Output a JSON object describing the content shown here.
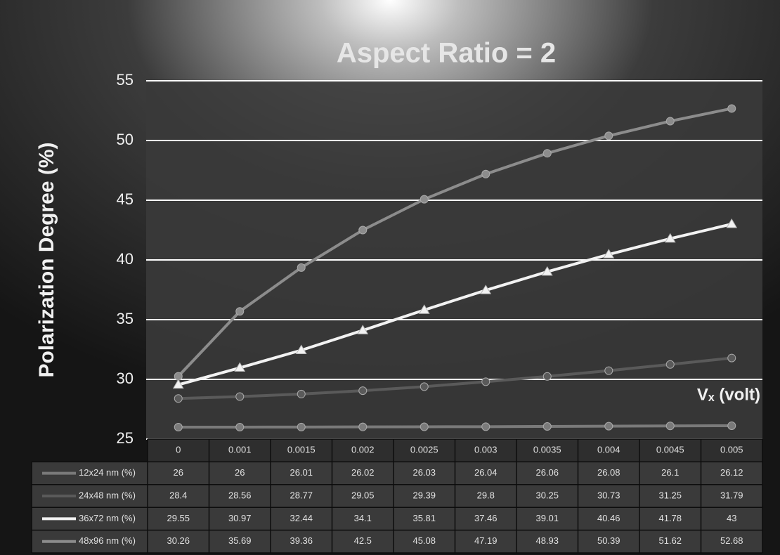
{
  "chart_data": {
    "type": "line",
    "title": "Aspect Ratio = 2",
    "y_label": "Polarization Degree (%)",
    "x_label": "Vₓ (volt)",
    "categories": [
      "0",
      "0.001",
      "0.0015",
      "0.002",
      "0.0025",
      "0.003",
      "0.0035",
      "0.004",
      "0.0045",
      "0.005"
    ],
    "series": [
      {
        "name": "12x24 nm (%)",
        "color": "#7a7a7a",
        "marker": "circle",
        "values": [
          26,
          26,
          26.01,
          26.02,
          26.03,
          26.04,
          26.06,
          26.08,
          26.1,
          26.12
        ]
      },
      {
        "name": "24x48 nm (%)",
        "color": "#5a5a5a",
        "marker": "circle",
        "values": [
          28.4,
          28.56,
          28.77,
          29.05,
          29.39,
          29.8,
          30.25,
          30.73,
          31.25,
          31.79
        ]
      },
      {
        "name": "36x72 nm (%)",
        "color": "#f2f2f2",
        "marker": "triangle",
        "values": [
          29.55,
          30.97,
          32.44,
          34.1,
          35.81,
          37.46,
          39.01,
          40.46,
          41.78,
          43
        ]
      },
      {
        "name": "48x96 nm (%)",
        "color": "#8c8c8c",
        "marker": "circle",
        "values": [
          30.26,
          35.69,
          39.36,
          42.5,
          45.08,
          47.19,
          48.93,
          50.39,
          51.62,
          52.68
        ]
      }
    ],
    "ylim": [
      25,
      55
    ],
    "yticks": [
      25,
      30,
      35,
      40,
      45,
      50,
      55
    ],
    "grid": true
  }
}
